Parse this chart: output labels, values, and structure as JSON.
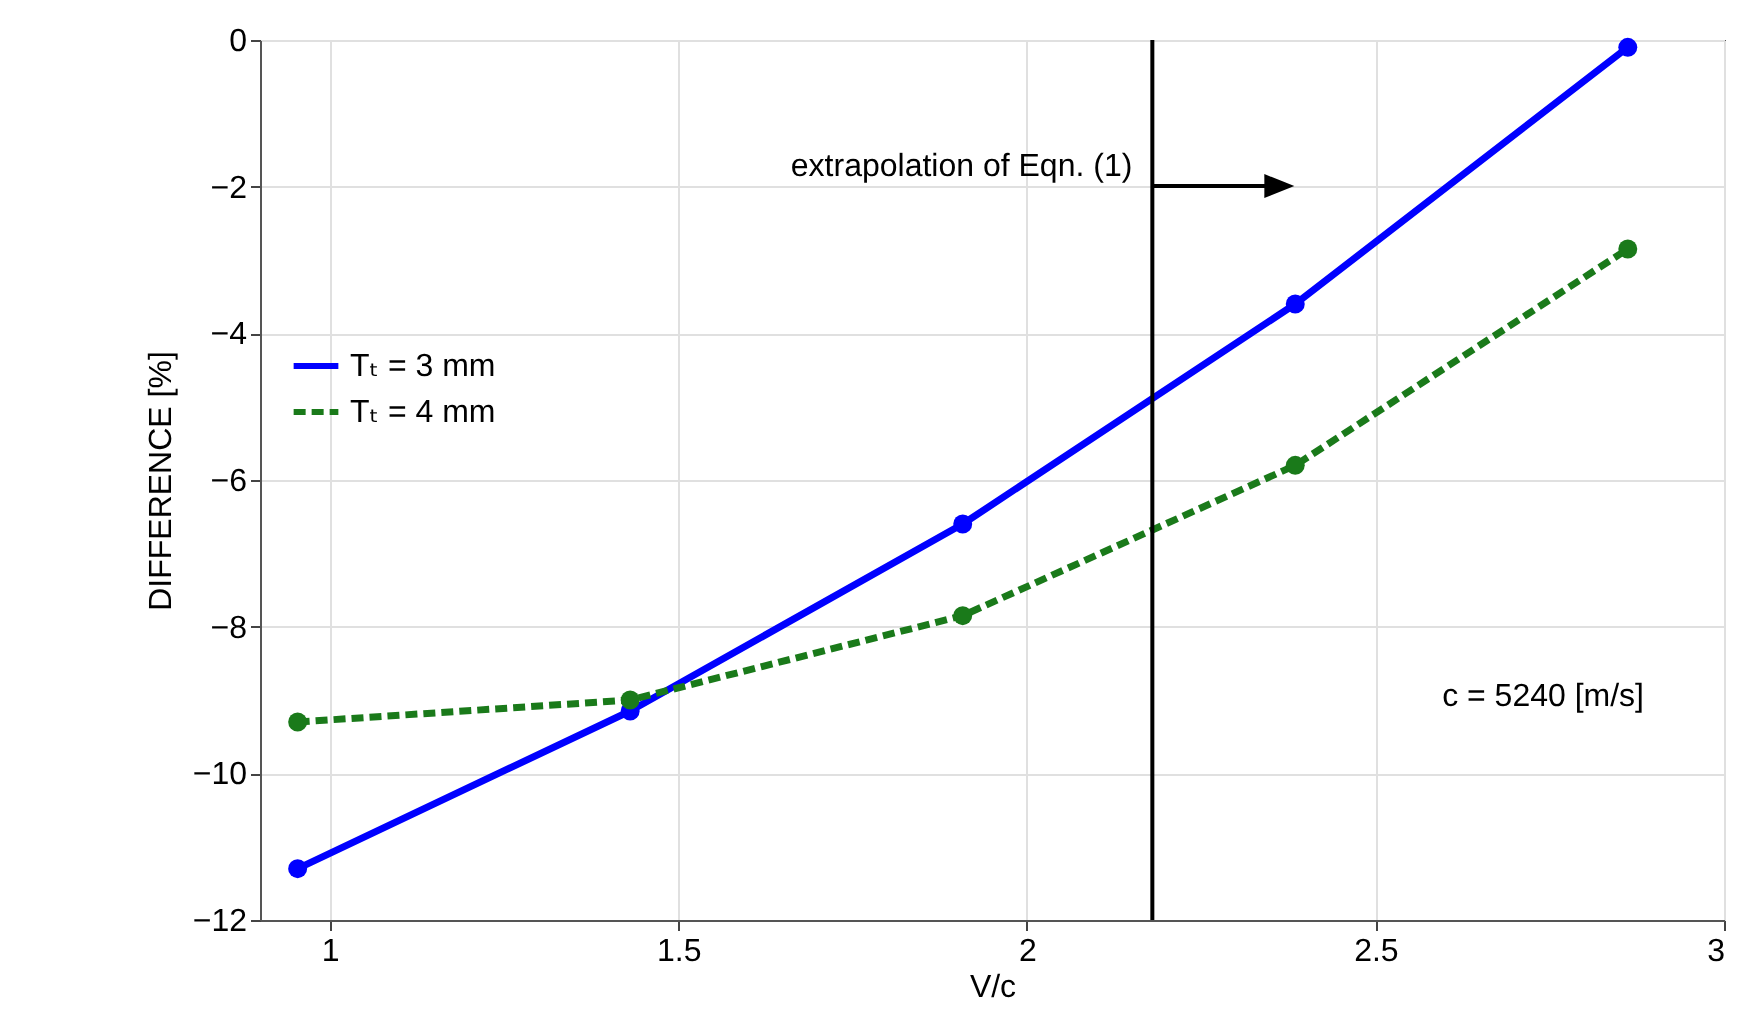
{
  "chart_data": {
    "type": "line",
    "xlabel": "V/c",
    "ylabel": "DIFFERENCE [%]",
    "x": [
      0.954,
      1.431,
      1.908,
      2.385,
      2.862
    ],
    "series": [
      {
        "name": "Tₜ = 3 mm",
        "color": "#0000ff",
        "values": [
          -11.3,
          -9.15,
          -6.6,
          -3.6,
          -0.1
        ],
        "line_style": "solid",
        "marker": "circle"
      },
      {
        "name": "Tₜ = 4 mm",
        "color": "#1a7a1a",
        "values": [
          -9.3,
          -9.0,
          -7.85,
          -5.8,
          -2.85
        ],
        "line_style": "dashed",
        "marker": "circle"
      }
    ],
    "xlim": [
      0.9,
      3
    ],
    "xticks": [
      1,
      1.5,
      2,
      2.5,
      3
    ],
    "ylim": [
      -12,
      0
    ],
    "yticks": [
      -12,
      -10,
      -8,
      -6,
      -4,
      -2,
      0
    ],
    "grid": true,
    "legend": "top left",
    "ref_lines": [
      {
        "axis": "x",
        "value": 2.18,
        "color": "#000000"
      }
    ],
    "annotations": [
      "extrapolation of Eqn.  (1)",
      "c = 5240 [m/s]"
    ]
  }
}
